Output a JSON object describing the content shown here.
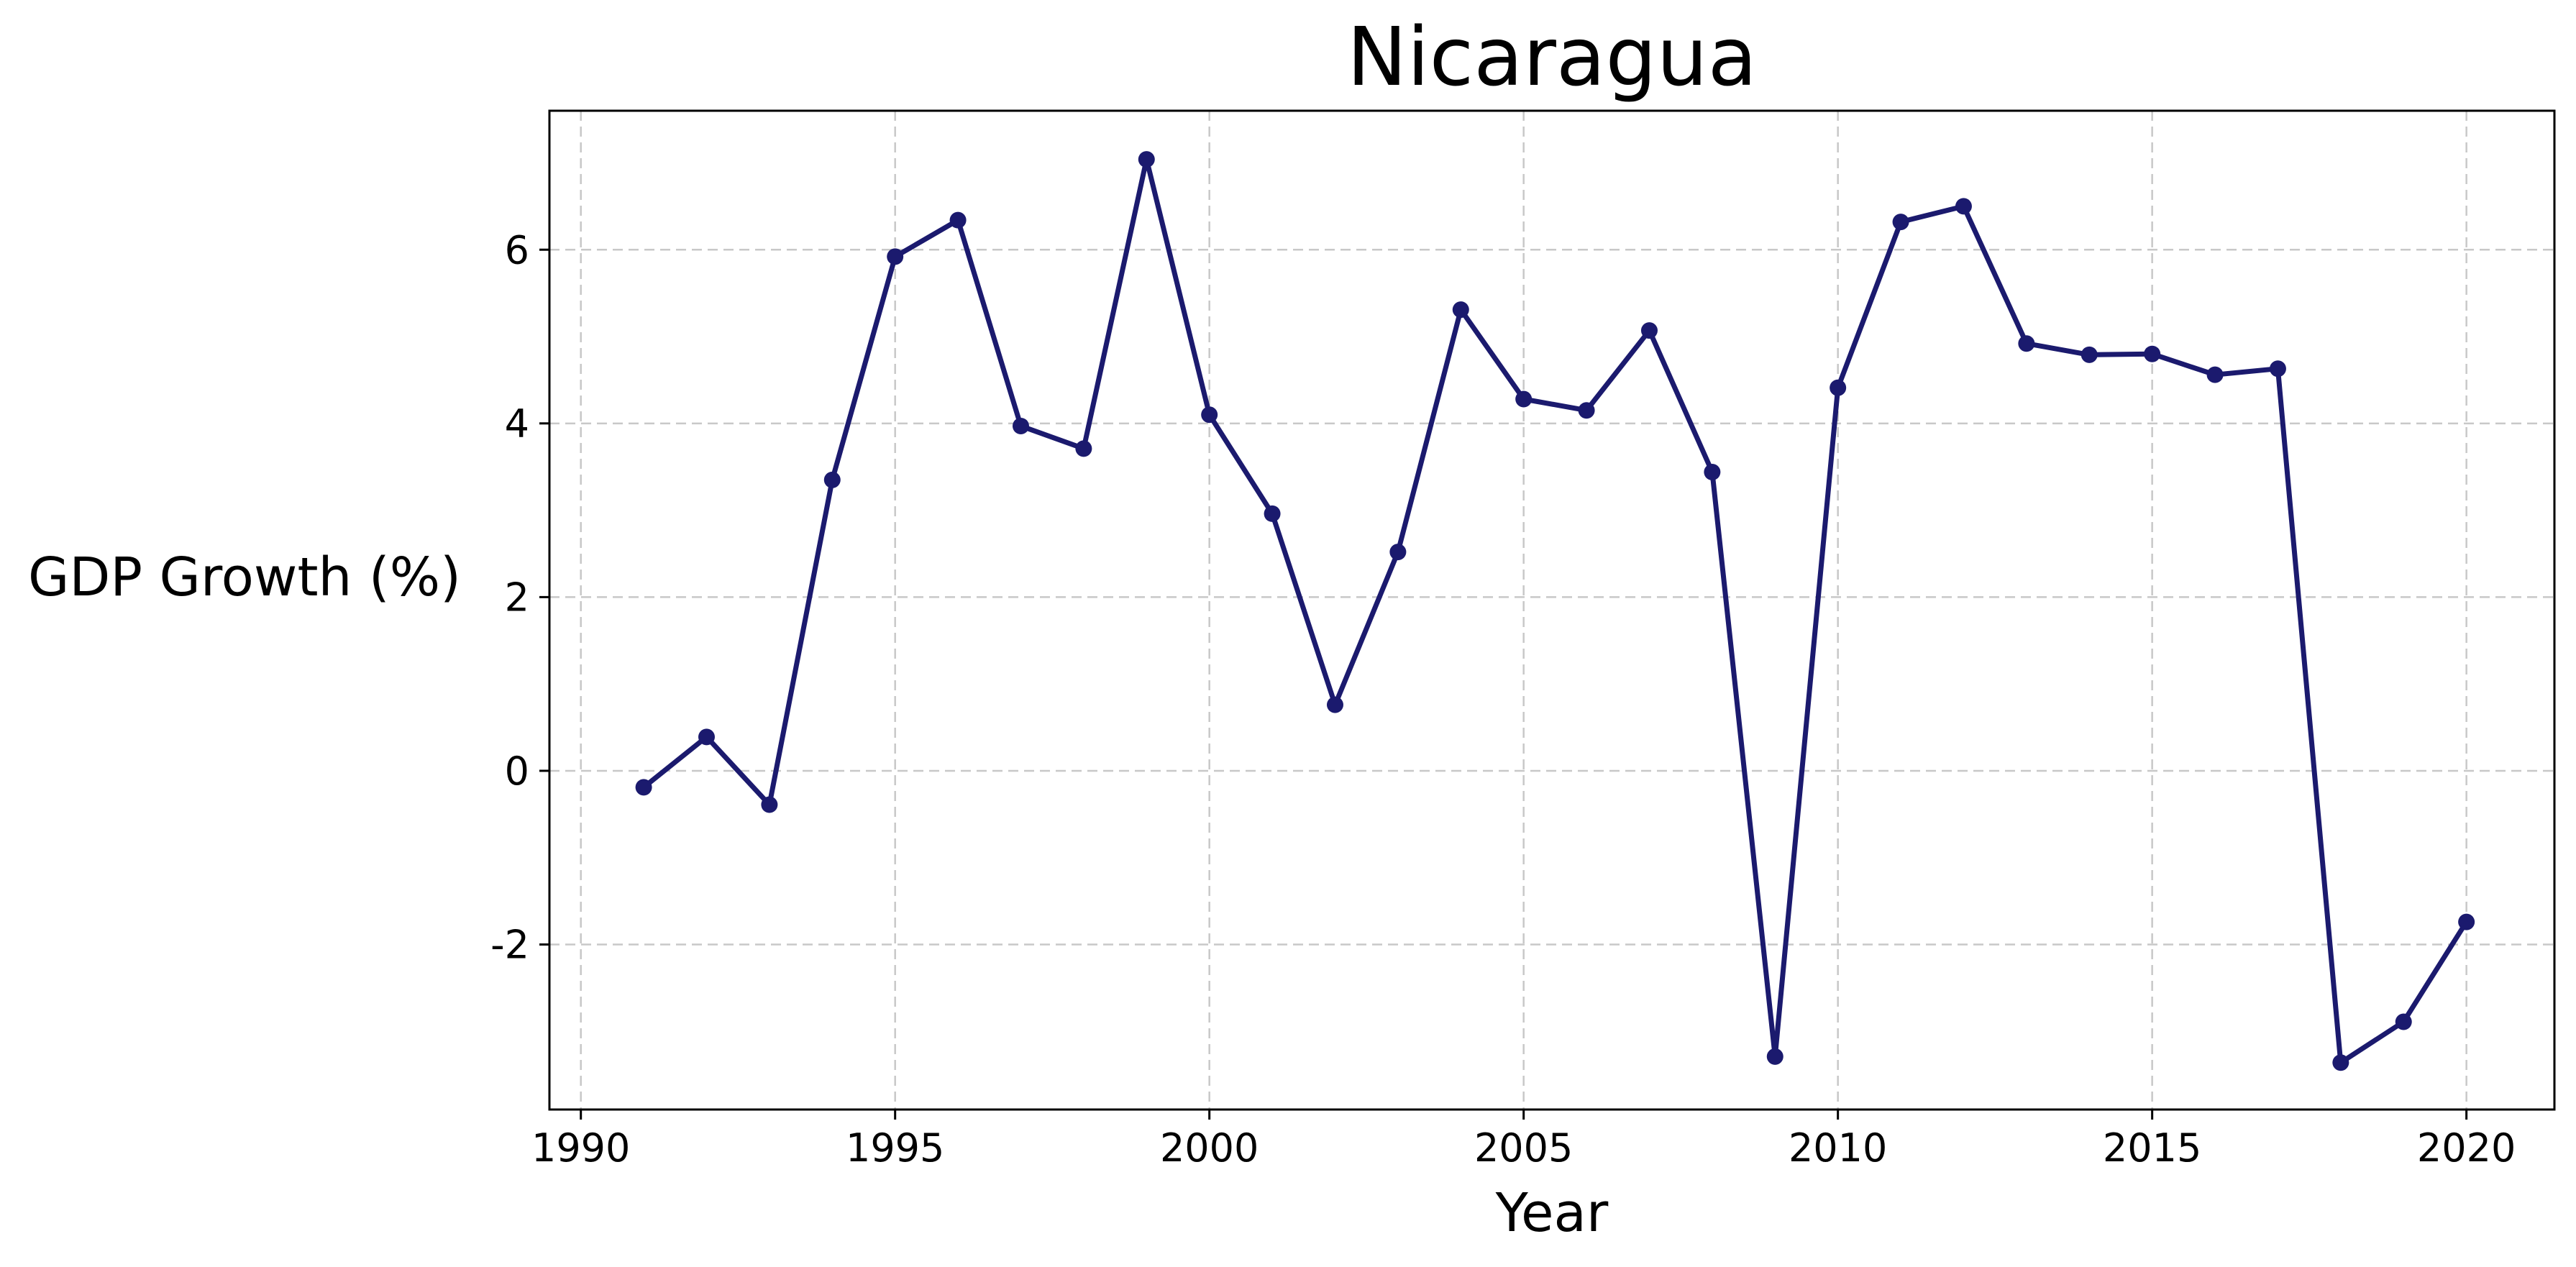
{
  "chart_data": {
    "type": "line",
    "title": "Nicaragua",
    "xlabel": "Year",
    "ylabel": "GDP Growth (%)",
    "xlim": [
      1989.5,
      2021.4
    ],
    "ylim": [
      -3.9,
      7.6
    ],
    "xticks": [
      1990,
      1995,
      2000,
      2005,
      2010,
      2015,
      2020
    ],
    "xtick_labels": [
      "1990",
      "1995",
      "2000",
      "2005",
      "2010",
      "2015",
      "2020"
    ],
    "yticks": [
      -2,
      0,
      2,
      4,
      6
    ],
    "ytick_labels": [
      "-2",
      "0",
      "2",
      "4",
      "6"
    ],
    "grid": true,
    "color": "#1b1a6e",
    "series": [
      {
        "x": [
          1991,
          1992,
          1993,
          1994,
          1995,
          1996,
          1997,
          1998,
          1999,
          2000,
          2001,
          2002,
          2003,
          2004,
          2005,
          2006,
          2007,
          2008,
          2009,
          2010,
          2011,
          2012,
          2013,
          2014,
          2015,
          2016,
          2017,
          2018,
          2019,
          2020
        ],
        "values": [
          -0.19,
          0.39,
          -0.39,
          3.35,
          5.92,
          6.34,
          3.97,
          3.71,
          7.04,
          4.1,
          2.96,
          0.76,
          2.52,
          5.31,
          4.28,
          4.15,
          5.07,
          3.44,
          -3.29,
          4.41,
          6.32,
          6.5,
          4.92,
          4.79,
          4.8,
          4.56,
          4.63,
          -3.36,
          -2.89,
          -1.74
        ]
      }
    ]
  }
}
